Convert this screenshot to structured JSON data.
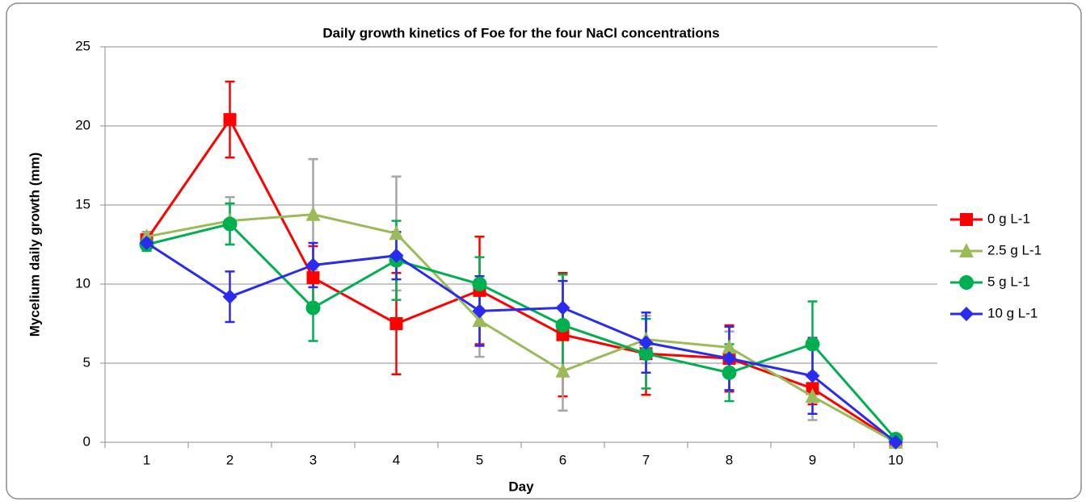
{
  "chart_data": {
    "type": "line",
    "title": "Daily growth kinetics of Foe for the four NaCl concentrations",
    "x_label": "Day",
    "y_label": "Mycelium daily  growth (mm)",
    "categories": [
      "1",
      "2",
      "3",
      "4",
      "5",
      "6",
      "7",
      "8",
      "9",
      "10"
    ],
    "ylim": [
      0,
      25
    ],
    "yticks": [
      0,
      5,
      10,
      15,
      20,
      25
    ],
    "grid": true,
    "legend": "right",
    "series": [
      {
        "name": "0 g L-1",
        "color": "#ff0000",
        "error_color": "#ff0000",
        "marker": "square",
        "values": [
          12.8,
          20.4,
          10.4,
          7.5,
          9.6,
          6.8,
          5.6,
          5.3,
          3.4,
          0
        ],
        "errors": [
          0.5,
          2.4,
          2.0,
          3.2,
          3.4,
          3.9,
          2.6,
          2.1,
          1.0,
          0
        ]
      },
      {
        "name": "2.5 g L-1",
        "color": "#9bbb59",
        "error_color": "#a6a6a6",
        "marker": "triangle",
        "values": [
          13.0,
          14.0,
          14.4,
          13.2,
          7.7,
          4.5,
          6.5,
          6.0,
          2.9,
          0
        ],
        "errors": [
          0.3,
          1.5,
          3.5,
          3.6,
          2.3,
          2.5,
          1.5,
          1.0,
          1.5,
          0
        ]
      },
      {
        "name": "5 g L-1",
        "color": "#00b050",
        "error_color": "#00b050",
        "marker": "circle",
        "values": [
          12.5,
          13.8,
          8.5,
          11.5,
          10.0,
          7.4,
          5.6,
          4.4,
          6.2,
          0.2
        ],
        "errors": [
          0.4,
          1.3,
          2.1,
          2.5,
          1.7,
          3.2,
          2.2,
          1.8,
          2.7,
          0
        ]
      },
      {
        "name": "10 g L-1",
        "color": "#2b2bf0",
        "error_color": "#2b2bf0",
        "marker": "diamond",
        "values": [
          12.6,
          9.2,
          11.2,
          11.8,
          8.3,
          8.5,
          6.3,
          5.3,
          4.2,
          0
        ],
        "errors": [
          0.4,
          1.6,
          1.4,
          1.5,
          2.2,
          1.7,
          1.9,
          2.0,
          2.4,
          0
        ]
      }
    ]
  }
}
